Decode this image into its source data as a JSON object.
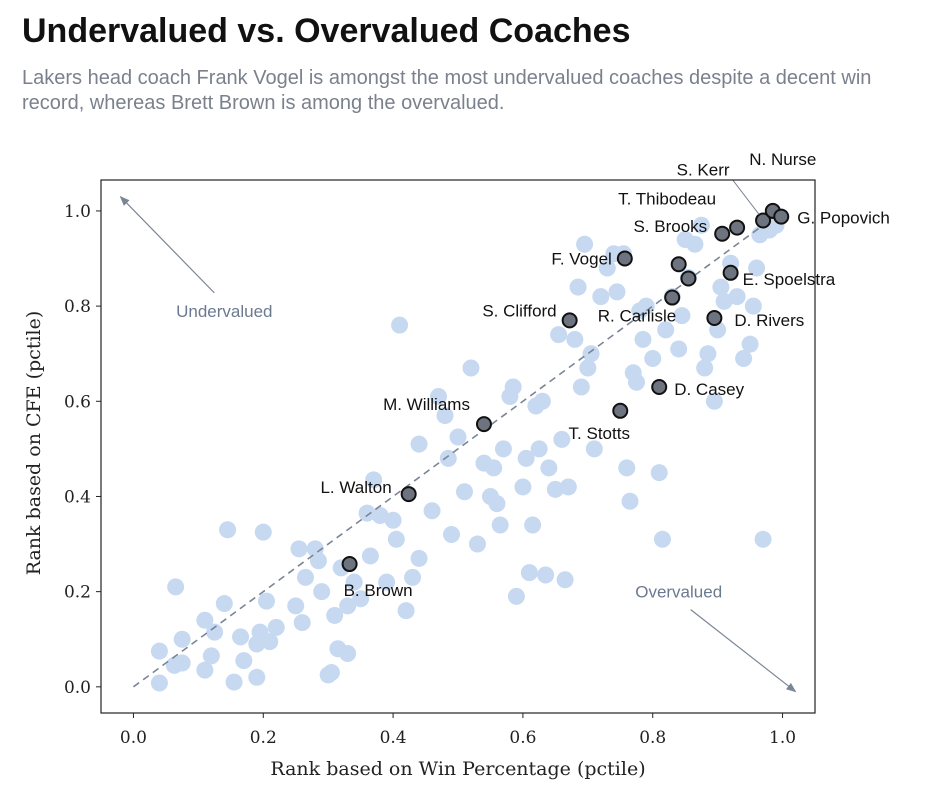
{
  "title": "Undervalued vs. Overvalued Coaches",
  "subtitle": "Lakers head coach Frank Vogel is amongst the most undervalued coaches despite a decent win record, whereas Brett Brown is among the overvalued.",
  "colors": {
    "background_point": "#c6d9f1",
    "highlight_point": "#6d7480",
    "highlight_edge": "#111111",
    "diagonal": "#7a8696",
    "arrow": "#7a8696"
  },
  "chart_data": {
    "type": "scatter",
    "xlabel": "Rank based on Win Percentage (pctile)",
    "ylabel": "Rank based on CFE (pctile)",
    "xlim": [
      -0.05,
      1.05
    ],
    "ylim": [
      -0.055,
      1.065
    ],
    "xticks": [
      "0.0",
      "0.2",
      "0.4",
      "0.6",
      "0.8",
      "1.0"
    ],
    "yticks": [
      "0.0",
      "0.2",
      "0.4",
      "0.6",
      "0.8",
      "1.0"
    ],
    "grid": false,
    "reference_line": {
      "x": [
        0,
        1
      ],
      "y": [
        0,
        1
      ],
      "style": "dashed"
    },
    "annotations": [
      {
        "text": "Undervalued",
        "x": 0.14,
        "y": 0.79,
        "arrow_to": [
          -0.02,
          1.03
        ]
      },
      {
        "text": "Overvalued",
        "x": 0.84,
        "y": 0.2,
        "arrow_to": [
          1.02,
          -0.01
        ]
      }
    ],
    "highlighted": [
      {
        "name": "S. Kerr",
        "x": 0.97,
        "y": 0.98
      },
      {
        "name": "N. Nurse",
        "x": 0.985,
        "y": 1.0
      },
      {
        "name": "G. Popovich",
        "x": 0.998,
        "y": 0.988
      },
      {
        "name": "T. Thibodeau",
        "x": 0.93,
        "y": 0.965
      },
      {
        "name": "S. Brooks",
        "x": 0.907,
        "y": 0.952
      },
      {
        "name": "F. Vogel",
        "x": 0.757,
        "y": 0.9
      },
      {
        "name": "E. Spoelstra",
        "x": 0.92,
        "y": 0.87
      },
      {
        "name": "S. Clifford",
        "x": 0.672,
        "y": 0.77
      },
      {
        "name": "R. Carlisle",
        "x": 0.83,
        "y": 0.818
      },
      {
        "name": "D. Rivers",
        "x": 0.895,
        "y": 0.775
      },
      {
        "name": "D. Casey",
        "x": 0.81,
        "y": 0.63
      },
      {
        "name": "T. Stotts",
        "x": 0.75,
        "y": 0.58
      },
      {
        "name": "M. Williams",
        "x": 0.54,
        "y": 0.552
      },
      {
        "name": "L. Walton",
        "x": 0.424,
        "y": 0.405
      },
      {
        "name": "B. Brown",
        "x": 0.333,
        "y": 0.258
      },
      {
        "name": "",
        "x": 0.84,
        "y": 0.888
      },
      {
        "name": "",
        "x": 0.855,
        "y": 0.858
      }
    ],
    "background_points": [
      [
        0.04,
        0.008
      ],
      [
        0.04,
        0.075
      ],
      [
        0.063,
        0.045
      ],
      [
        0.075,
        0.05
      ],
      [
        0.065,
        0.21
      ],
      [
        0.075,
        0.1
      ],
      [
        0.11,
        0.035
      ],
      [
        0.11,
        0.14
      ],
      [
        0.12,
        0.065
      ],
      [
        0.125,
        0.115
      ],
      [
        0.14,
        0.175
      ],
      [
        0.145,
        0.33
      ],
      [
        0.155,
        0.01
      ],
      [
        0.165,
        0.105
      ],
      [
        0.17,
        0.055
      ],
      [
        0.19,
        0.02
      ],
      [
        0.19,
        0.09
      ],
      [
        0.195,
        0.115
      ],
      [
        0.2,
        0.325
      ],
      [
        0.205,
        0.18
      ],
      [
        0.21,
        0.095
      ],
      [
        0.22,
        0.125
      ],
      [
        0.25,
        0.17
      ],
      [
        0.255,
        0.29
      ],
      [
        0.26,
        0.135
      ],
      [
        0.265,
        0.23
      ],
      [
        0.28,
        0.29
      ],
      [
        0.285,
        0.265
      ],
      [
        0.29,
        0.2
      ],
      [
        0.3,
        0.025
      ],
      [
        0.305,
        0.03
      ],
      [
        0.31,
        0.15
      ],
      [
        0.315,
        0.08
      ],
      [
        0.32,
        0.25
      ],
      [
        0.33,
        0.07
      ],
      [
        0.33,
        0.17
      ],
      [
        0.34,
        0.22
      ],
      [
        0.35,
        0.185
      ],
      [
        0.36,
        0.365
      ],
      [
        0.365,
        0.275
      ],
      [
        0.37,
        0.435
      ],
      [
        0.38,
        0.36
      ],
      [
        0.39,
        0.22
      ],
      [
        0.4,
        0.35
      ],
      [
        0.405,
        0.31
      ],
      [
        0.41,
        0.76
      ],
      [
        0.42,
        0.16
      ],
      [
        0.43,
        0.23
      ],
      [
        0.44,
        0.27
      ],
      [
        0.44,
        0.51
      ],
      [
        0.46,
        0.37
      ],
      [
        0.47,
        0.61
      ],
      [
        0.48,
        0.57
      ],
      [
        0.485,
        0.48
      ],
      [
        0.49,
        0.32
      ],
      [
        0.5,
        0.525
      ],
      [
        0.51,
        0.41
      ],
      [
        0.52,
        0.67
      ],
      [
        0.53,
        0.3
      ],
      [
        0.54,
        0.47
      ],
      [
        0.55,
        0.4
      ],
      [
        0.555,
        0.46
      ],
      [
        0.56,
        0.385
      ],
      [
        0.565,
        0.34
      ],
      [
        0.57,
        0.5
      ],
      [
        0.58,
        0.61
      ],
      [
        0.585,
        0.63
      ],
      [
        0.59,
        0.19
      ],
      [
        0.6,
        0.42
      ],
      [
        0.605,
        0.48
      ],
      [
        0.61,
        0.24
      ],
      [
        0.615,
        0.34
      ],
      [
        0.62,
        0.59
      ],
      [
        0.625,
        0.5
      ],
      [
        0.63,
        0.6
      ],
      [
        0.635,
        0.235
      ],
      [
        0.64,
        0.46
      ],
      [
        0.65,
        0.415
      ],
      [
        0.655,
        0.74
      ],
      [
        0.66,
        0.52
      ],
      [
        0.665,
        0.225
      ],
      [
        0.67,
        0.42
      ],
      [
        0.68,
        0.73
      ],
      [
        0.685,
        0.84
      ],
      [
        0.69,
        0.63
      ],
      [
        0.695,
        0.93
      ],
      [
        0.7,
        0.67
      ],
      [
        0.705,
        0.7
      ],
      [
        0.71,
        0.5
      ],
      [
        0.72,
        0.82
      ],
      [
        0.73,
        0.88
      ],
      [
        0.74,
        0.91
      ],
      [
        0.745,
        0.83
      ],
      [
        0.755,
        0.91
      ],
      [
        0.76,
        0.46
      ],
      [
        0.765,
        0.39
      ],
      [
        0.77,
        0.66
      ],
      [
        0.775,
        0.64
      ],
      [
        0.78,
        0.79
      ],
      [
        0.785,
        0.73
      ],
      [
        0.79,
        0.8
      ],
      [
        0.8,
        0.69
      ],
      [
        0.81,
        0.45
      ],
      [
        0.815,
        0.31
      ],
      [
        0.82,
        0.75
      ],
      [
        0.83,
        0.82
      ],
      [
        0.84,
        0.71
      ],
      [
        0.845,
        0.78
      ],
      [
        0.85,
        0.94
      ],
      [
        0.855,
        0.86
      ],
      [
        0.865,
        0.93
      ],
      [
        0.875,
        0.97
      ],
      [
        0.88,
        0.67
      ],
      [
        0.885,
        0.7
      ],
      [
        0.895,
        0.6
      ],
      [
        0.9,
        0.75
      ],
      [
        0.905,
        0.84
      ],
      [
        0.91,
        0.81
      ],
      [
        0.92,
        0.89
      ],
      [
        0.93,
        0.82
      ],
      [
        0.94,
        0.69
      ],
      [
        0.95,
        0.72
      ],
      [
        0.955,
        0.8
      ],
      [
        0.96,
        0.88
      ],
      [
        0.965,
        0.95
      ],
      [
        0.97,
        0.31
      ],
      [
        0.98,
        0.96
      ],
      [
        0.99,
        0.97
      ]
    ]
  }
}
